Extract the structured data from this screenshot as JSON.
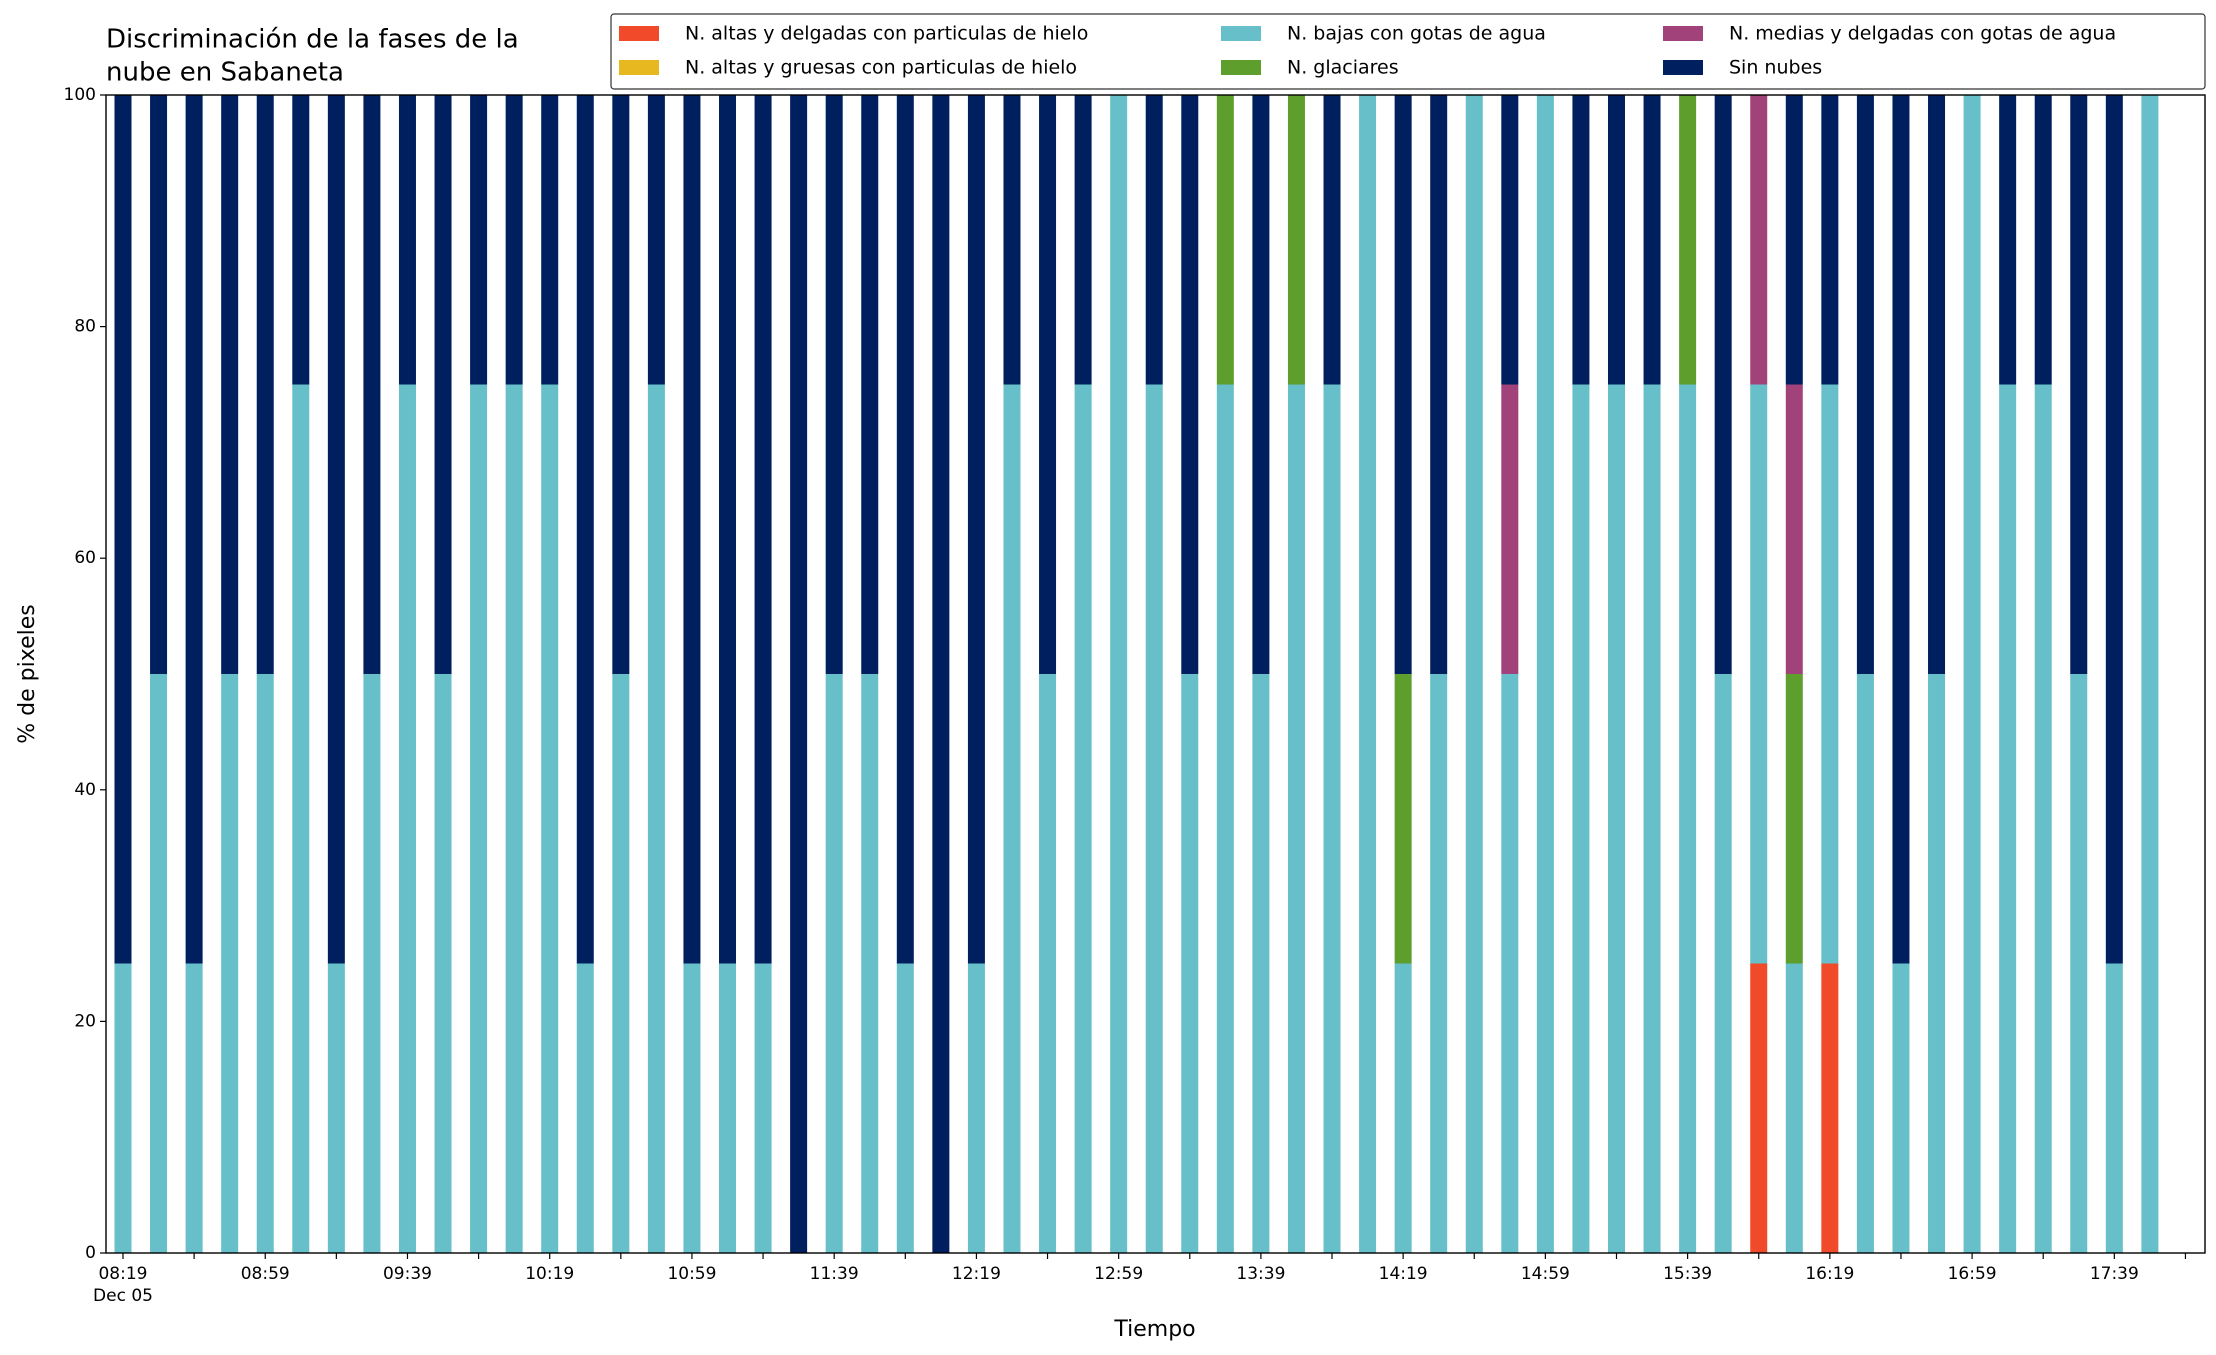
{
  "chart_data": {
    "type": "stacked_bar",
    "title": [
      "Discriminación de la fases de la",
      "nube en Sabaneta"
    ],
    "x_label": "Tiempo",
    "y_label": "% de pixeles",
    "x_date_label": "Dec 05",
    "categories": [
      "08:19",
      null,
      null,
      null,
      "08:59",
      null,
      null,
      null,
      "09:39",
      null,
      null,
      null,
      "10:19",
      null,
      null,
      null,
      "10:59",
      null,
      null,
      null,
      "11:39",
      null,
      null,
      null,
      "12:19",
      null,
      null,
      null,
      "12:59",
      null,
      null,
      null,
      "13:39",
      null,
      null,
      null,
      "14:19",
      null,
      null,
      null,
      "14:59",
      null,
      null,
      null,
      "15:39",
      null,
      null,
      null,
      "16:19",
      null,
      null,
      null,
      "16:59",
      null,
      null,
      null,
      "17:39",
      null
    ],
    "series": [
      {
        "name": "N. altas y delgadas con particulas de hielo",
        "color": "#f04a2b",
        "values": [
          0,
          0,
          0,
          0,
          0,
          0,
          0,
          0,
          0,
          0,
          0,
          0,
          0,
          0,
          0,
          0,
          0,
          0,
          0,
          0,
          0,
          0,
          0,
          0,
          0,
          0,
          0,
          0,
          0,
          0,
          0,
          0,
          0,
          0,
          0,
          0,
          0,
          0,
          0,
          0,
          0,
          0,
          0,
          0,
          0,
          0,
          25,
          0,
          25,
          0,
          0,
          0,
          0,
          0,
          0,
          0,
          0,
          0
        ]
      },
      {
        "name": "N. altas y gruesas con particulas de hielo",
        "color": "#e8b820",
        "values": [
          0,
          0,
          0,
          0,
          0,
          0,
          0,
          0,
          0,
          0,
          0,
          0,
          0,
          0,
          0,
          0,
          0,
          0,
          0,
          0,
          0,
          0,
          0,
          0,
          0,
          0,
          0,
          0,
          0,
          0,
          0,
          0,
          0,
          0,
          0,
          0,
          0,
          0,
          0,
          0,
          0,
          0,
          0,
          0,
          0,
          0,
          0,
          0,
          0,
          0,
          0,
          0,
          0,
          0,
          0,
          0,
          0,
          0
        ]
      },
      {
        "name": "N. bajas con gotas de agua",
        "color": "#66bfc9",
        "values": [
          25,
          50,
          25,
          50,
          50,
          75,
          25,
          50,
          75,
          50,
          75,
          75,
          75,
          25,
          50,
          75,
          25,
          25,
          25,
          0,
          50,
          50,
          25,
          0,
          25,
          75,
          50,
          75,
          100,
          75,
          50,
          75,
          50,
          75,
          75,
          100,
          25,
          50,
          100,
          50,
          100,
          75,
          75,
          75,
          75,
          50,
          50,
          25,
          50,
          50,
          25,
          50,
          100,
          75,
          75,
          50,
          25,
          100
        ]
      },
      {
        "name": "N. glaciares",
        "color": "#5e9e2c",
        "values": [
          0,
          0,
          0,
          0,
          0,
          0,
          0,
          0,
          0,
          0,
          0,
          0,
          0,
          0,
          0,
          0,
          0,
          0,
          0,
          0,
          0,
          0,
          0,
          0,
          0,
          0,
          0,
          0,
          0,
          0,
          0,
          25,
          0,
          25,
          0,
          0,
          25,
          0,
          0,
          0,
          0,
          0,
          0,
          0,
          25,
          0,
          0,
          25,
          0,
          0,
          0,
          0,
          0,
          0,
          0,
          0,
          0,
          0
        ]
      },
      {
        "name": "N. medias y delgadas con gotas de agua",
        "color": "#a2427a",
        "values": [
          0,
          0,
          0,
          0,
          0,
          0,
          0,
          0,
          0,
          0,
          0,
          0,
          0,
          0,
          0,
          0,
          0,
          0,
          0,
          0,
          0,
          0,
          0,
          0,
          0,
          0,
          0,
          0,
          0,
          0,
          0,
          0,
          0,
          0,
          0,
          0,
          0,
          0,
          0,
          25,
          0,
          0,
          0,
          0,
          0,
          0,
          25,
          25,
          0,
          0,
          0,
          0,
          0,
          0,
          0,
          0,
          0,
          0
        ]
      },
      {
        "name": "Sin nubes",
        "color": "#001f5f",
        "values": [
          75,
          50,
          75,
          50,
          50,
          25,
          75,
          50,
          25,
          50,
          25,
          25,
          25,
          75,
          50,
          25,
          75,
          75,
          75,
          100,
          50,
          50,
          75,
          100,
          75,
          25,
          50,
          25,
          0,
          25,
          50,
          0,
          50,
          0,
          25,
          0,
          50,
          50,
          0,
          25,
          0,
          25,
          25,
          25,
          0,
          50,
          0,
          25,
          25,
          50,
          75,
          50,
          0,
          25,
          25,
          50,
          75,
          0
        ]
      }
    ],
    "ylim": [
      0,
      100
    ],
    "yticks": [
      0,
      20,
      40,
      60,
      80,
      100
    ],
    "legend": "top right outside"
  }
}
